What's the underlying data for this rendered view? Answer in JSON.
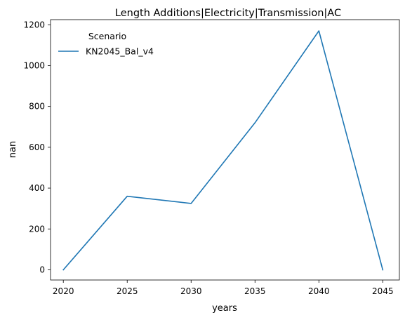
{
  "chart_data": {
    "type": "line",
    "title": "Length Additions|Electricity|Transmission|AC",
    "xlabel": "years",
    "ylabel": "nan",
    "x": [
      2020,
      2025,
      2030,
      2035,
      2040,
      2045
    ],
    "xticks": [
      2020,
      2025,
      2030,
      2035,
      2040,
      2045
    ],
    "yticks": [
      0,
      200,
      400,
      600,
      800,
      1000,
      1200
    ],
    "xlim": [
      2019,
      2046.3
    ],
    "ylim": [
      -50,
      1225
    ],
    "grid": false,
    "legend": {
      "title": "Scenario",
      "placement": "upper-left"
    },
    "series": [
      {
        "name": "KN2045_Bal_v4",
        "color": "#1f77b4",
        "values": [
          0,
          360,
          325,
          720,
          1170,
          0
        ]
      }
    ]
  }
}
